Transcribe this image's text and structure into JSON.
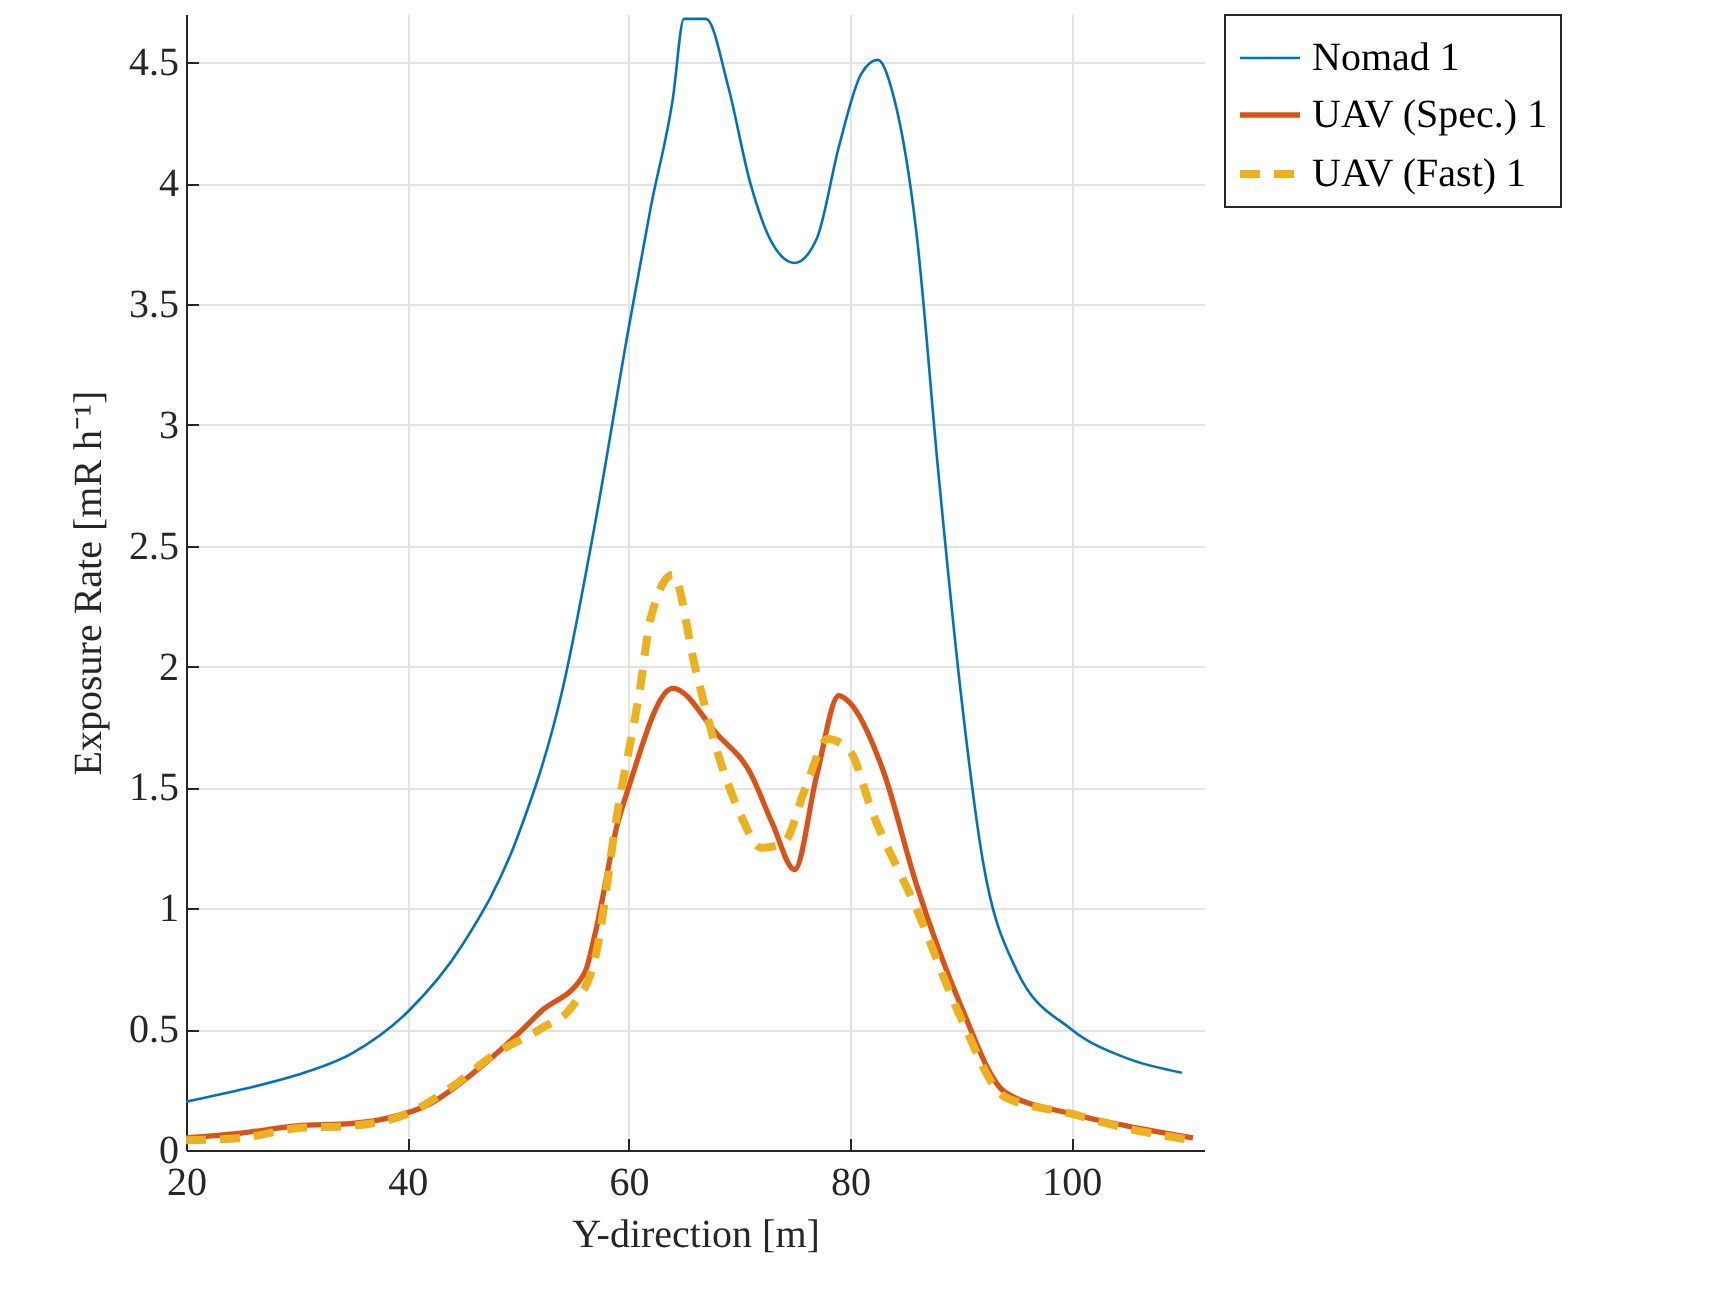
{
  "chart_data": {
    "type": "line",
    "xlabel": "Y-direction [m]",
    "ylabel": "Exposure Rate [mR h⁻¹]",
    "xlim": [
      20,
      112
    ],
    "xticks": [
      20,
      40,
      60,
      80,
      100
    ],
    "ylim": [
      0,
      4.7
    ],
    "yticks": [
      0,
      0.5,
      1,
      1.5,
      2,
      2.5,
      3,
      3.5,
      4,
      4.5
    ],
    "grid": true,
    "legend": "top right",
    "series": [
      {
        "name": "Nomad 1",
        "color": "#0072bd",
        "line_style": "solid",
        "x": [
          20,
          25,
          30,
          35,
          40,
          45,
          50,
          54,
          57,
          60,
          62,
          64,
          65,
          67,
          69,
          71,
          73,
          75,
          77,
          79,
          81,
          82.5,
          84,
          86,
          88,
          90,
          92,
          95,
          100,
          105,
          110
        ],
        "values": [
          0.2,
          0.25,
          0.31,
          0.4,
          0.57,
          0.85,
          1.3,
          1.9,
          2.6,
          3.4,
          3.9,
          4.35,
          4.68,
          4.68,
          4.4,
          4.0,
          3.75,
          3.67,
          3.77,
          4.15,
          4.45,
          4.51,
          4.35,
          3.8,
          2.8,
          1.9,
          1.2,
          0.75,
          0.5,
          0.38,
          0.32
        ]
      },
      {
        "name": "UAV (Spec.) 1",
        "color": "#d95319",
        "line_style": "solid",
        "x": [
          20,
          25,
          30,
          35,
          38,
          42,
          46,
          50,
          52,
          56,
          57,
          59,
          60,
          64,
          68,
          71,
          73,
          75,
          77,
          79,
          80,
          83,
          86,
          90,
          94,
          100,
          105,
          111
        ],
        "values": [
          0.05,
          0.07,
          0.1,
          0.11,
          0.13,
          0.19,
          0.32,
          0.48,
          0.57,
          0.73,
          0.9,
          1.35,
          1.5,
          1.91,
          1.72,
          1.56,
          1.35,
          1.16,
          1.55,
          1.88,
          1.85,
          1.57,
          1.1,
          0.6,
          0.24,
          0.15,
          0.1,
          0.05
        ]
      },
      {
        "name": "UAV (Fast) 1",
        "color": "#edb120",
        "line_style": "dashed",
        "x": [
          20,
          25,
          30,
          35,
          40,
          44,
          48,
          52,
          55,
          57,
          59,
          61,
          62,
          64,
          66,
          68,
          70,
          72,
          74,
          76,
          78,
          80,
          82,
          86,
          90,
          94,
          100,
          105,
          111
        ],
        "values": [
          0.04,
          0.05,
          0.09,
          0.1,
          0.15,
          0.26,
          0.4,
          0.5,
          0.6,
          0.8,
          1.4,
          1.9,
          2.2,
          2.38,
          2.0,
          1.65,
          1.4,
          1.25,
          1.27,
          1.5,
          1.7,
          1.65,
          1.4,
          1.0,
          0.55,
          0.22,
          0.15,
          0.09,
          0.04
        ]
      }
    ]
  }
}
